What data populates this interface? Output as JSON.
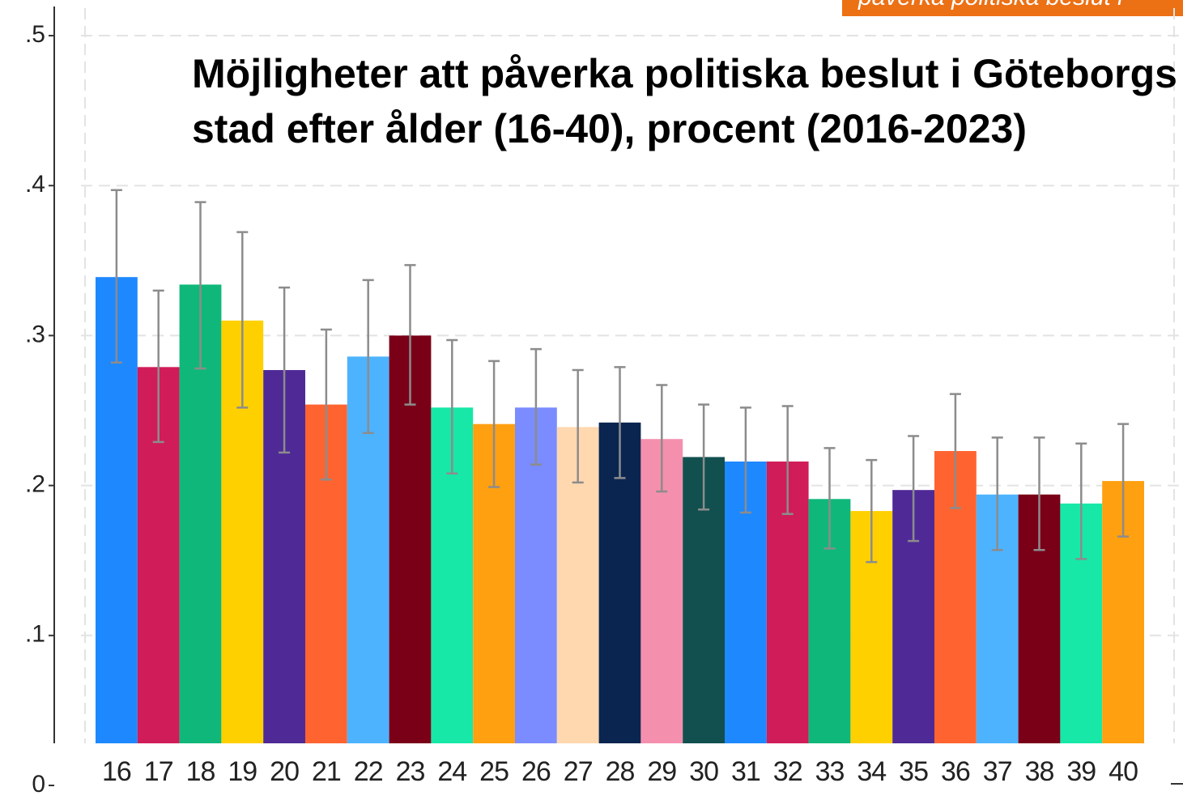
{
  "chart_data": {
    "type": "bar",
    "title_lines": [
      "Möjligheter att påverka politiska beslut i Göteborgs",
      "stad efter ålder (16-40), procent  (2016-2023)"
    ],
    "annotation": "påverka politiska beslut i",
    "categories": [
      "16",
      "17",
      "18",
      "19",
      "20",
      "21",
      "22",
      "23",
      "24",
      "25",
      "26",
      "27",
      "28",
      "29",
      "30",
      "31",
      "32",
      "33",
      "34",
      "35",
      "36",
      "37",
      "38",
      "39",
      "40"
    ],
    "values": [
      0.339,
      0.279,
      0.334,
      0.31,
      0.277,
      0.254,
      0.286,
      0.3,
      0.252,
      0.241,
      0.252,
      0.239,
      0.242,
      0.231,
      0.219,
      0.216,
      0.216,
      0.191,
      0.183,
      0.197,
      0.223,
      0.194,
      0.194,
      0.188,
      0.203
    ],
    "upper": [
      0.397,
      0.33,
      0.389,
      0.369,
      0.332,
      0.304,
      0.337,
      0.347,
      0.297,
      0.283,
      0.291,
      0.277,
      0.279,
      0.267,
      0.254,
      0.252,
      0.253,
      0.225,
      0.217,
      0.233,
      0.261,
      0.232,
      0.232,
      0.228,
      0.241
    ],
    "lower": [
      0.282,
      0.229,
      0.278,
      0.252,
      0.222,
      0.204,
      0.235,
      0.254,
      0.208,
      0.199,
      0.214,
      0.202,
      0.205,
      0.196,
      0.184,
      0.182,
      0.181,
      0.158,
      0.149,
      0.163,
      0.185,
      0.157,
      0.157,
      0.151,
      0.166
    ],
    "colors": [
      "#1e88ff",
      "#d01c58",
      "#0fb87a",
      "#ffd000",
      "#4f2a96",
      "#ff6430",
      "#4db3ff",
      "#7a0018",
      "#17e8a8",
      "#ffa010",
      "#7a8cff",
      "#ffd8b0",
      "#0a2550",
      "#f58fae",
      "#125050",
      "#1e88ff",
      "#d01c58",
      "#0fb87a",
      "#ffd000",
      "#4f2a96",
      "#ff6430",
      "#4db3ff",
      "#7a0018",
      "#17e8a8",
      "#ffa010"
    ],
    "error_color": "#8c8c8c",
    "ylim": [
      0,
      0.52
    ],
    "yticks": [
      0,
      {
        "value": 0.1,
        "label": ".1"
      },
      {
        "value": 0.2,
        "label": ".2"
      },
      {
        "value": 0.3,
        "label": ".3"
      },
      {
        "value": 0.4,
        "label": ".4"
      },
      {
        "value": 0.5,
        "label": ".5"
      }
    ],
    "grid": true
  }
}
